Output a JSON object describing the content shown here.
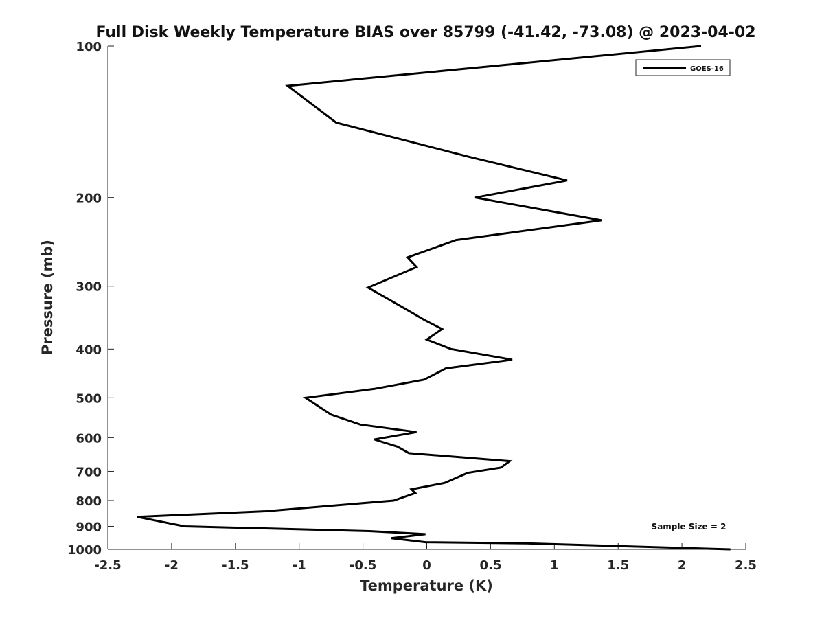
{
  "chart_data": {
    "type": "line",
    "title": "Full Disk Weekly Temperature BIAS over 85799 (-41.42, -73.08) @ 2023-04-02",
    "xlabel": "Temperature (K)",
    "ylabel": "Pressure (mb)",
    "xlim": [
      -2.5,
      2.5
    ],
    "ylim": [
      100,
      1000
    ],
    "y_scale": "log",
    "y_reversed": true,
    "x_ticks": [
      "-2.5",
      "-2",
      "-1.5",
      "-1",
      "-0.5",
      "0",
      "0.5",
      "1",
      "1.5",
      "2",
      "2.5"
    ],
    "x_tick_values": [
      -2.5,
      -2,
      -1.5,
      -1,
      -0.5,
      0,
      0.5,
      1,
      1.5,
      2,
      2.5
    ],
    "y_ticks": [
      "100",
      "200",
      "300",
      "400",
      "500",
      "600",
      "700",
      "800",
      "900",
      "1000"
    ],
    "y_tick_values": [
      100,
      200,
      300,
      400,
      500,
      600,
      700,
      800,
      900,
      1000
    ],
    "grid": false,
    "legend_position": "top-right",
    "annotation": "Sample Size = 2",
    "series": [
      {
        "name": "GOES-16",
        "color": "#000000",
        "points": [
          {
            "x": 2.15,
            "p": 100
          },
          {
            "x": -1.09,
            "p": 120
          },
          {
            "x": -0.71,
            "p": 142
          },
          {
            "x": 0.33,
            "p": 166
          },
          {
            "x": 1.1,
            "p": 185
          },
          {
            "x": 0.38,
            "p": 200
          },
          {
            "x": 1.37,
            "p": 222
          },
          {
            "x": 0.23,
            "p": 243
          },
          {
            "x": -0.15,
            "p": 263
          },
          {
            "x": -0.08,
            "p": 275
          },
          {
            "x": -0.46,
            "p": 302
          },
          {
            "x": -0.22,
            "p": 327
          },
          {
            "x": -0.02,
            "p": 350
          },
          {
            "x": 0.12,
            "p": 365
          },
          {
            "x": 0.0,
            "p": 383
          },
          {
            "x": 0.19,
            "p": 400
          },
          {
            "x": 0.67,
            "p": 420
          },
          {
            "x": 0.15,
            "p": 437
          },
          {
            "x": -0.02,
            "p": 460
          },
          {
            "x": -0.41,
            "p": 480
          },
          {
            "x": -0.95,
            "p": 500
          },
          {
            "x": -0.75,
            "p": 540
          },
          {
            "x": -0.52,
            "p": 565
          },
          {
            "x": -0.08,
            "p": 585
          },
          {
            "x": -0.41,
            "p": 605
          },
          {
            "x": -0.23,
            "p": 625
          },
          {
            "x": -0.14,
            "p": 644
          },
          {
            "x": 0.65,
            "p": 668
          },
          {
            "x": 0.58,
            "p": 688
          },
          {
            "x": 0.32,
            "p": 705
          },
          {
            "x": 0.14,
            "p": 738
          },
          {
            "x": -0.12,
            "p": 760
          },
          {
            "x": -0.09,
            "p": 773
          },
          {
            "x": -0.26,
            "p": 800
          },
          {
            "x": -1.26,
            "p": 840
          },
          {
            "x": -2.27,
            "p": 862
          },
          {
            "x": -1.9,
            "p": 900
          },
          {
            "x": -0.45,
            "p": 920
          },
          {
            "x": -0.01,
            "p": 933
          },
          {
            "x": -0.28,
            "p": 950
          },
          {
            "x": -0.01,
            "p": 968
          },
          {
            "x": 0.78,
            "p": 973
          },
          {
            "x": 2.38,
            "p": 1000
          }
        ]
      }
    ]
  }
}
